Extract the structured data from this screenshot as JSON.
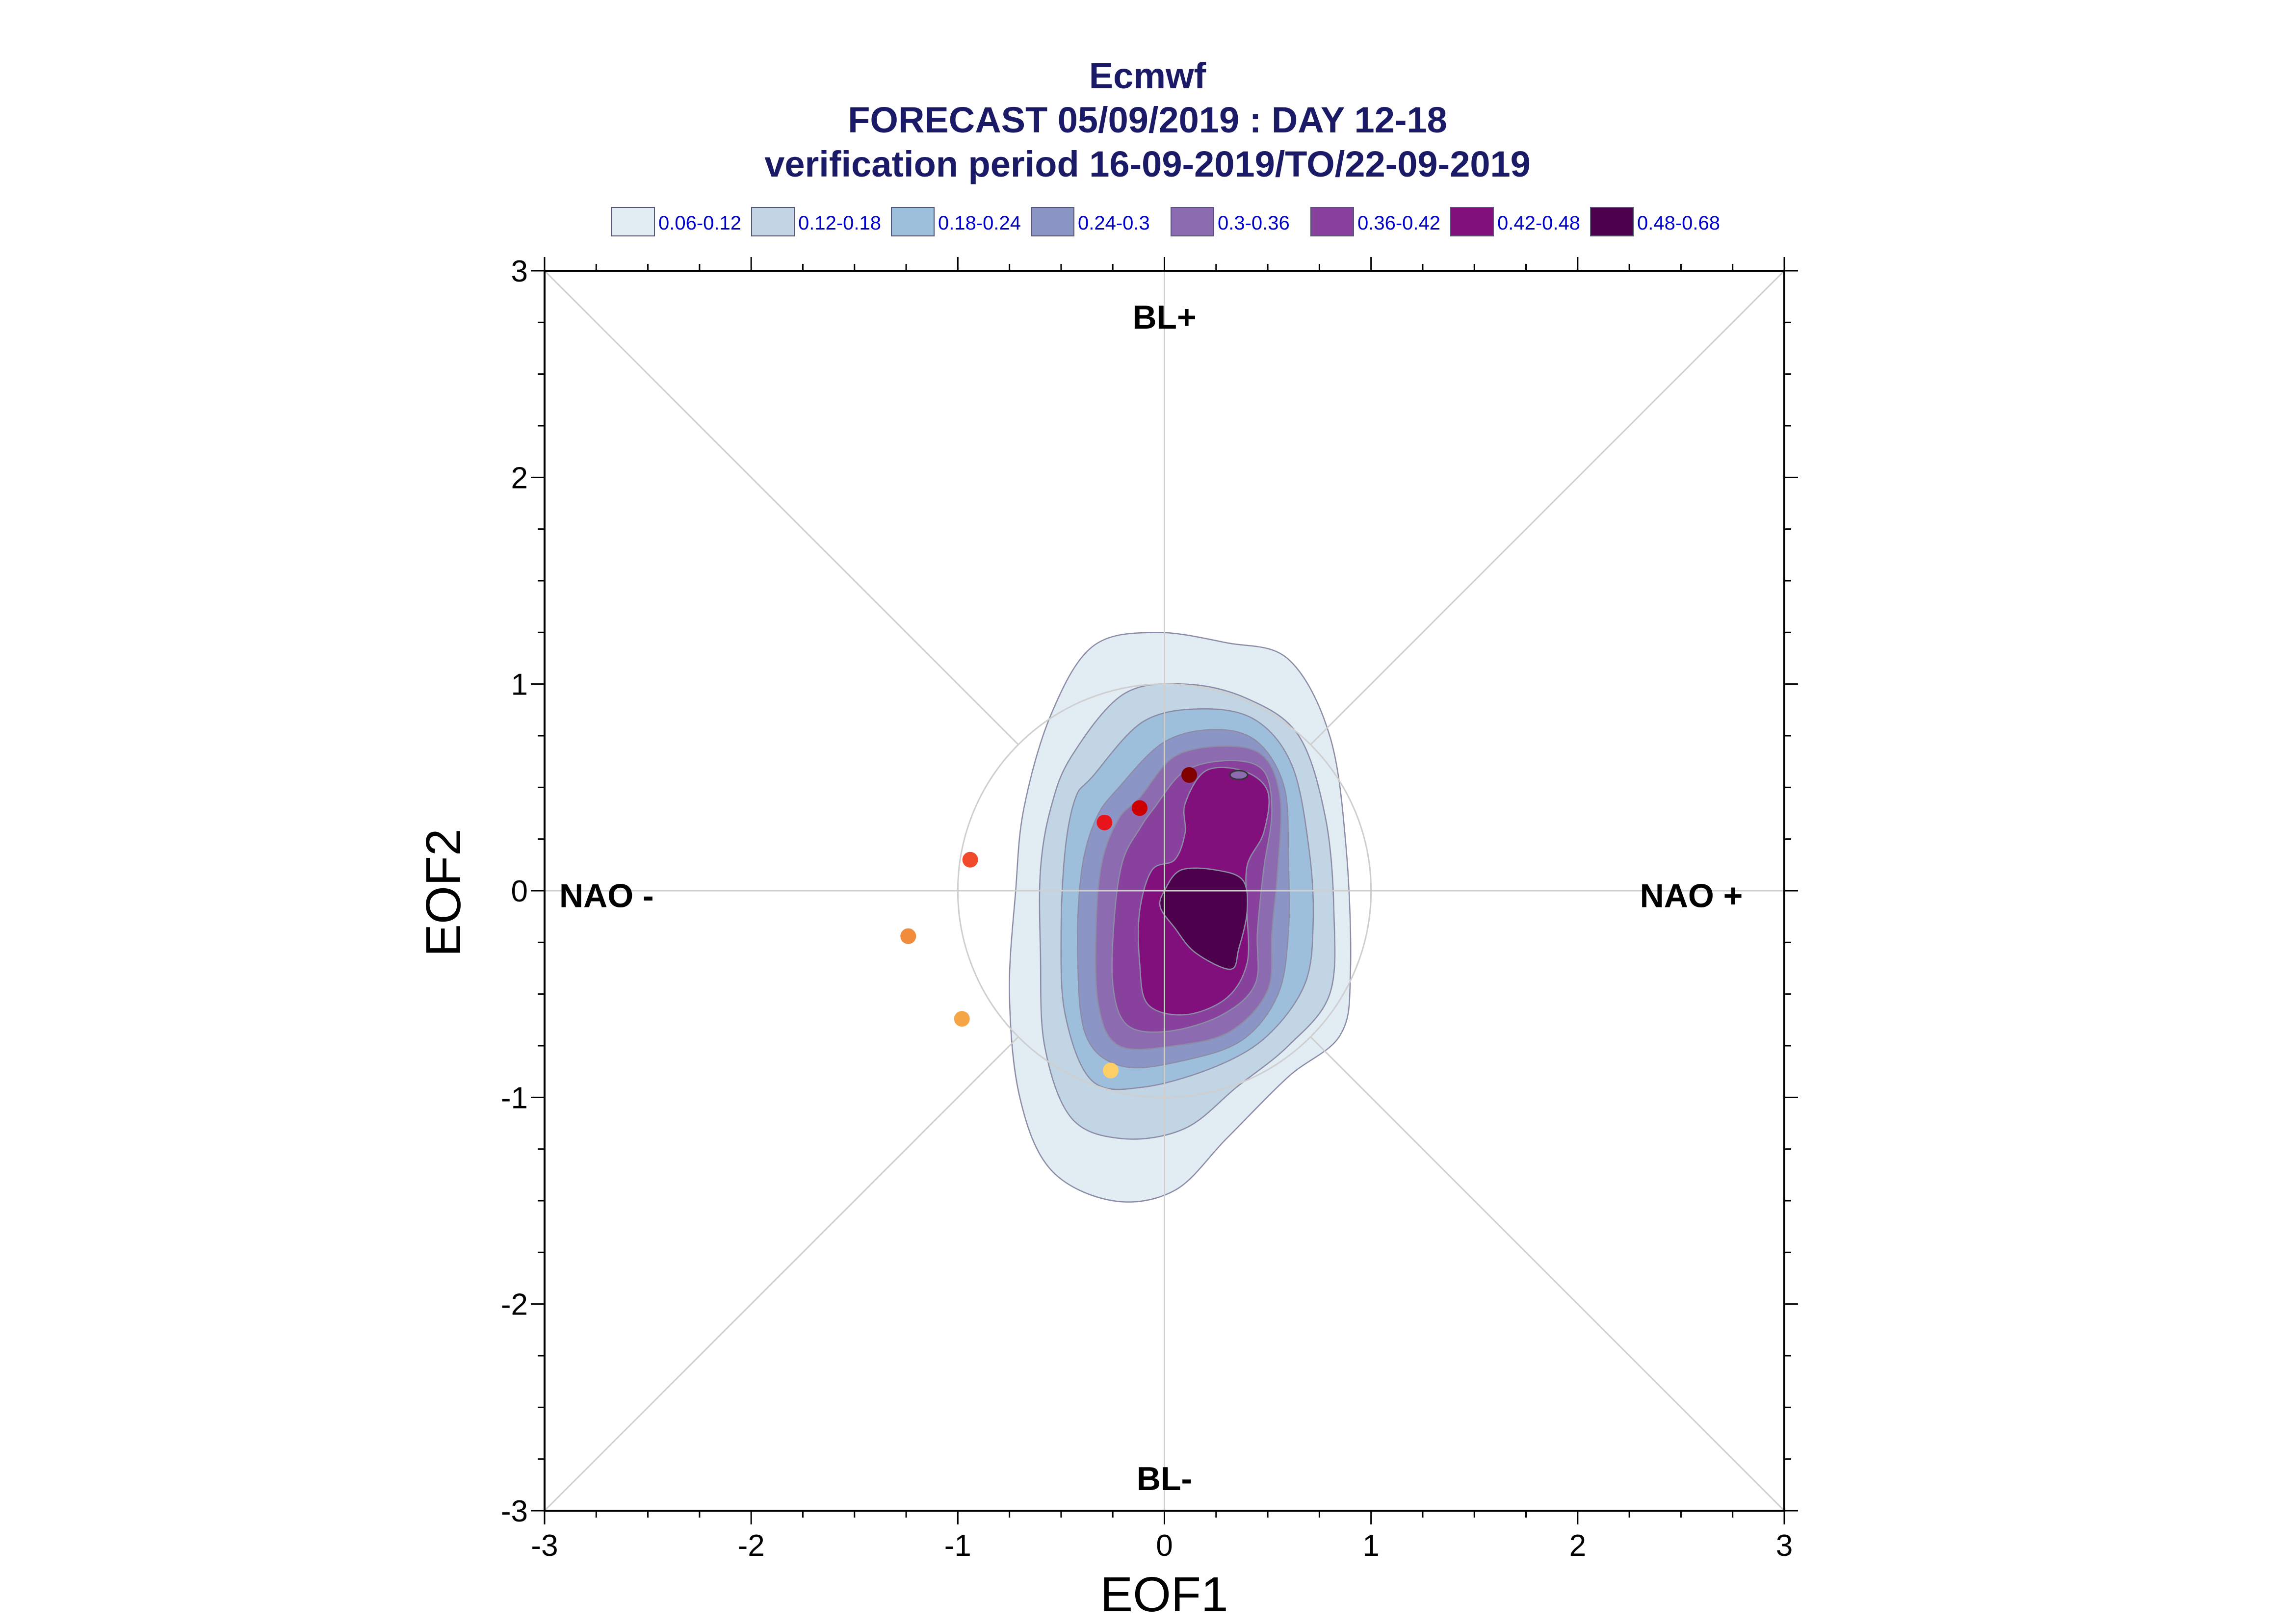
{
  "chart_data": {
    "type": "contour",
    "title": "Ecmwf",
    "subtitle_lines": [
      "FORECAST 05/09/2019 : DAY 12-18",
      "verification period 16-09-2019/TO/22-09-2019"
    ],
    "xlabel": "EOF1",
    "ylabel": "EOF2",
    "xlim": [
      -3,
      3
    ],
    "ylim": [
      -3,
      3
    ],
    "x_ticks": [
      "-3",
      "-2",
      "-1",
      "0",
      "1",
      "2",
      "3"
    ],
    "y_ticks": [
      "3",
      "2",
      "1",
      "0",
      "-1",
      "-2",
      "-3"
    ],
    "grid": "crosshair and diagonals",
    "reference_circle_radius": 1.0,
    "regime_labels": [
      {
        "id": "bl-plus",
        "text": "BL+",
        "x": 0.0,
        "y": 2.72
      },
      {
        "id": "bl-minus",
        "text": "BL-",
        "x": 0.0,
        "y": -2.9
      },
      {
        "id": "nao-minus",
        "text": "NAO -",
        "x": -2.7,
        "y": -0.08
      },
      {
        "id": "nao-plus",
        "text": "NAO +",
        "x": 2.55,
        "y": -0.08
      }
    ],
    "legend": {
      "placement": "top",
      "entries": [
        {
          "label": "0.06-0.12",
          "color": "#e2ecf3"
        },
        {
          "label": "0.12-0.18",
          "color": "#c2d5e5"
        },
        {
          "label": "0.18-0.24",
          "color": "#9ebfdc"
        },
        {
          "label": "0.24-0.3",
          "color": "#8c96c6"
        },
        {
          "label": "0.3-0.36",
          "color": "#8c6bb1"
        },
        {
          "label": "0.36-0.42",
          "color": "#88419d"
        },
        {
          "label": "0.42-0.48",
          "color": "#810f7c"
        },
        {
          "label": "0.48-0.68",
          "color": "#4d004b"
        }
      ]
    },
    "contours": [
      {
        "range": "0.06-0.12",
        "color": "#e2ecf3",
        "points": [
          [
            -0.55,
            0.85
          ],
          [
            -0.35,
            1.18
          ],
          [
            -0.05,
            1.25
          ],
          [
            0.3,
            1.2
          ],
          [
            0.6,
            1.12
          ],
          [
            0.8,
            0.75
          ],
          [
            0.88,
            0.2
          ],
          [
            0.9,
            -0.4
          ],
          [
            0.85,
            -0.7
          ],
          [
            0.6,
            -0.9
          ],
          [
            0.3,
            -1.2
          ],
          [
            0.05,
            -1.45
          ],
          [
            -0.25,
            -1.5
          ],
          [
            -0.55,
            -1.35
          ],
          [
            -0.7,
            -1.0
          ],
          [
            -0.75,
            -0.5
          ],
          [
            -0.72,
            0.0
          ],
          [
            -0.68,
            0.4
          ]
        ]
      },
      {
        "range": "0.12-0.18",
        "color": "#c2d5e5",
        "points": [
          [
            -0.45,
            0.65
          ],
          [
            -0.2,
            0.95
          ],
          [
            0.1,
            1.0
          ],
          [
            0.4,
            0.93
          ],
          [
            0.65,
            0.75
          ],
          [
            0.78,
            0.35
          ],
          [
            0.82,
            -0.1
          ],
          [
            0.8,
            -0.5
          ],
          [
            0.6,
            -0.75
          ],
          [
            0.35,
            -0.95
          ],
          [
            0.1,
            -1.15
          ],
          [
            -0.2,
            -1.2
          ],
          [
            -0.45,
            -1.1
          ],
          [
            -0.58,
            -0.75
          ],
          [
            -0.6,
            -0.3
          ],
          [
            -0.6,
            0.1
          ],
          [
            -0.55,
            0.4
          ]
        ]
      },
      {
        "range": "0.18-0.24",
        "color": "#9ebfdc",
        "points": [
          [
            -0.35,
            0.55
          ],
          [
            -0.1,
            0.82
          ],
          [
            0.2,
            0.88
          ],
          [
            0.45,
            0.82
          ],
          [
            0.62,
            0.6
          ],
          [
            0.7,
            0.2
          ],
          [
            0.72,
            -0.15
          ],
          [
            0.68,
            -0.45
          ],
          [
            0.5,
            -0.7
          ],
          [
            0.25,
            -0.85
          ],
          [
            -0.1,
            -0.95
          ],
          [
            -0.35,
            -0.92
          ],
          [
            -0.48,
            -0.6
          ],
          [
            -0.5,
            -0.2
          ],
          [
            -0.48,
            0.2
          ],
          [
            -0.43,
            0.45
          ]
        ]
      },
      {
        "range": "0.24-0.3",
        "color": "#8c96c6",
        "points": [
          [
            -0.22,
            0.5
          ],
          [
            0.0,
            0.72
          ],
          [
            0.25,
            0.78
          ],
          [
            0.45,
            0.72
          ],
          [
            0.58,
            0.5
          ],
          [
            0.6,
            0.15
          ],
          [
            0.6,
            -0.2
          ],
          [
            0.55,
            -0.5
          ],
          [
            0.38,
            -0.72
          ],
          [
            0.1,
            -0.82
          ],
          [
            -0.2,
            -0.85
          ],
          [
            -0.38,
            -0.7
          ],
          [
            -0.42,
            -0.3
          ],
          [
            -0.4,
            0.1
          ],
          [
            -0.33,
            0.35
          ]
        ]
      },
      {
        "range": "0.3-0.36",
        "color": "#8c6bb1",
        "points": [
          [
            -0.12,
            0.45
          ],
          [
            0.05,
            0.65
          ],
          [
            0.3,
            0.7
          ],
          [
            0.48,
            0.65
          ],
          [
            0.56,
            0.45
          ],
          [
            0.55,
            0.12
          ],
          [
            0.52,
            -0.2
          ],
          [
            0.5,
            -0.48
          ],
          [
            0.32,
            -0.68
          ],
          [
            0.05,
            -0.75
          ],
          [
            -0.22,
            -0.75
          ],
          [
            -0.32,
            -0.55
          ],
          [
            -0.33,
            -0.15
          ],
          [
            -0.3,
            0.15
          ],
          [
            -0.22,
            0.35
          ]
        ]
      },
      {
        "range": "0.36-0.42",
        "color": "#88419d",
        "points": [
          [
            -0.05,
            0.4
          ],
          [
            0.1,
            0.58
          ],
          [
            0.32,
            0.63
          ],
          [
            0.48,
            0.58
          ],
          [
            0.52,
            0.38
          ],
          [
            0.48,
            0.1
          ],
          [
            0.45,
            -0.2
          ],
          [
            0.44,
            -0.45
          ],
          [
            0.28,
            -0.6
          ],
          [
            0.02,
            -0.68
          ],
          [
            -0.18,
            -0.65
          ],
          [
            -0.25,
            -0.45
          ],
          [
            -0.24,
            -0.1
          ],
          [
            -0.2,
            0.15
          ],
          [
            -0.12,
            0.3
          ]
        ]
      },
      {
        "range": "0.42-0.48",
        "color": "#810f7c",
        "points": [
          [
            0.1,
            0.42
          ],
          [
            0.2,
            0.58
          ],
          [
            0.38,
            0.58
          ],
          [
            0.5,
            0.48
          ],
          [
            0.48,
            0.28
          ],
          [
            0.4,
            0.12
          ],
          [
            0.4,
            -0.1
          ],
          [
            0.4,
            -0.35
          ],
          [
            0.3,
            -0.52
          ],
          [
            0.1,
            -0.6
          ],
          [
            -0.08,
            -0.55
          ],
          [
            -0.12,
            -0.35
          ],
          [
            -0.12,
            -0.1
          ],
          [
            -0.06,
            0.1
          ],
          [
            0.05,
            0.15
          ],
          [
            0.1,
            0.28
          ]
        ]
      },
      {
        "range": "0.48-0.68",
        "color": "#4d004b",
        "points": [
          [
            0.0,
            0.0
          ],
          [
            0.08,
            0.1
          ],
          [
            0.25,
            0.1
          ],
          [
            0.38,
            0.05
          ],
          [
            0.4,
            -0.1
          ],
          [
            0.36,
            -0.28
          ],
          [
            0.32,
            -0.38
          ],
          [
            0.15,
            -0.3
          ],
          [
            0.05,
            -0.18
          ],
          [
            -0.02,
            -0.08
          ]
        ]
      }
    ],
    "inner_peak": {
      "x": 0.36,
      "y": 0.56,
      "color": "#8c6bb1"
    },
    "points": [
      {
        "x": 0.12,
        "y": 0.56,
        "color": "#800000"
      },
      {
        "x": -0.12,
        "y": 0.4,
        "color": "#cc0000"
      },
      {
        "x": -0.29,
        "y": 0.33,
        "color": "#e8141c"
      },
      {
        "x": -0.94,
        "y": 0.15,
        "color": "#f04c2c"
      },
      {
        "x": -1.24,
        "y": -0.22,
        "color": "#f08c3c"
      },
      {
        "x": -0.98,
        "y": -0.62,
        "color": "#f4a646"
      },
      {
        "x": -0.26,
        "y": -0.87,
        "color": "#fcd066"
      }
    ]
  }
}
